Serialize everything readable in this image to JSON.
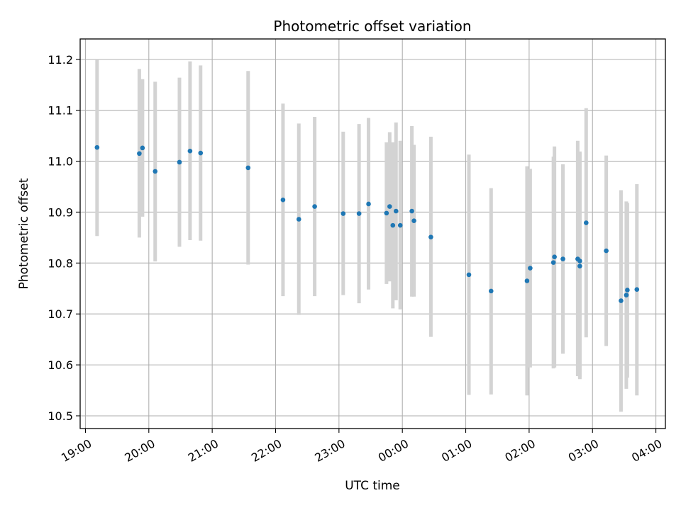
{
  "chart_data": {
    "type": "scatter",
    "title": "Photometric offset variation",
    "xlabel": "UTC time",
    "ylabel": "Photometric offset",
    "x_tick_labels": [
      "19:00",
      "20:00",
      "21:00",
      "22:00",
      "23:00",
      "00:00",
      "01:00",
      "02:00",
      "03:00",
      "04:00"
    ],
    "x_tick_hours": [
      19,
      20,
      21,
      22,
      23,
      24,
      25,
      26,
      27,
      28
    ],
    "y_ticks": [
      10.5,
      10.6,
      10.7,
      10.8,
      10.9,
      11.0,
      11.1,
      11.2
    ],
    "y_tick_labels": [
      "10.5",
      "10.6",
      "10.7",
      "10.8",
      "10.9",
      "11.0",
      "11.1",
      "11.2"
    ],
    "xlim": [
      "18:55",
      "04:09"
    ],
    "ylim": [
      10.475,
      11.24
    ],
    "grid": true,
    "colors": {
      "point": "#1f77b4",
      "errorbar": "#d3d3d3",
      "grid": "#b0b0b0"
    },
    "points": [
      {
        "t": "19:11",
        "y": 11.027,
        "lo": 10.853,
        "hi": 11.201
      },
      {
        "t": "19:51",
        "y": 11.015,
        "lo": 10.85,
        "hi": 11.181
      },
      {
        "t": "19:54",
        "y": 11.026,
        "lo": 10.891,
        "hi": 11.161
      },
      {
        "t": "20:06",
        "y": 10.98,
        "lo": 10.803,
        "hi": 11.156
      },
      {
        "t": "20:29",
        "y": 10.998,
        "lo": 10.832,
        "hi": 11.164
      },
      {
        "t": "20:39",
        "y": 11.02,
        "lo": 10.845,
        "hi": 11.196
      },
      {
        "t": "20:49",
        "y": 11.016,
        "lo": 10.844,
        "hi": 11.188
      },
      {
        "t": "21:34",
        "y": 10.987,
        "lo": 10.797,
        "hi": 11.177
      },
      {
        "t": "22:07",
        "y": 10.924,
        "lo": 10.735,
        "hi": 11.113
      },
      {
        "t": "22:22",
        "y": 10.886,
        "lo": 10.698,
        "hi": 11.074
      },
      {
        "t": "22:37",
        "y": 10.911,
        "lo": 10.735,
        "hi": 11.087
      },
      {
        "t": "23:04",
        "y": 10.897,
        "lo": 10.737,
        "hi": 11.058
      },
      {
        "t": "23:19",
        "y": 10.897,
        "lo": 10.721,
        "hi": 11.073
      },
      {
        "t": "23:28",
        "y": 10.916,
        "lo": 10.748,
        "hi": 11.085
      },
      {
        "t": "23:45",
        "y": 10.898,
        "lo": 10.759,
        "hi": 11.037
      },
      {
        "t": "23:48",
        "y": 10.911,
        "lo": 10.764,
        "hi": 11.057
      },
      {
        "t": "23:51",
        "y": 10.874,
        "lo": 10.711,
        "hi": 11.037
      },
      {
        "t": "23:54",
        "y": 10.902,
        "lo": 10.727,
        "hi": 11.076
      },
      {
        "t": "23:58",
        "y": 10.874,
        "lo": 10.709,
        "hi": 11.04
      },
      {
        "t": "00:09",
        "y": 10.902,
        "lo": 10.734,
        "hi": 11.069
      },
      {
        "t": "00:11",
        "y": 10.883,
        "lo": 10.734,
        "hi": 11.032
      },
      {
        "t": "00:27",
        "y": 10.851,
        "lo": 10.655,
        "hi": 11.048
      },
      {
        "t": "01:03",
        "y": 10.777,
        "lo": 10.541,
        "hi": 11.013
      },
      {
        "t": "01:24",
        "y": 10.745,
        "lo": 10.542,
        "hi": 10.947
      },
      {
        "t": "01:58",
        "y": 10.765,
        "lo": 10.54,
        "hi": 10.99
      },
      {
        "t": "02:01",
        "y": 10.79,
        "lo": 10.595,
        "hi": 10.985
      },
      {
        "t": "02:23",
        "y": 10.801,
        "lo": 10.593,
        "hi": 11.009
      },
      {
        "t": "02:24",
        "y": 10.812,
        "lo": 10.595,
        "hi": 11.029
      },
      {
        "t": "02:32",
        "y": 10.808,
        "lo": 10.622,
        "hi": 10.994
      },
      {
        "t": "02:46",
        "y": 10.808,
        "lo": 10.578,
        "hi": 11.04
      },
      {
        "t": "02:48",
        "y": 10.804,
        "lo": 10.575,
        "hi": 11.019
      },
      {
        "t": "02:48",
        "y": 10.794,
        "lo": 10.572,
        "hi": 11.017
      },
      {
        "t": "02:54",
        "y": 10.879,
        "lo": 10.654,
        "hi": 11.104
      },
      {
        "t": "03:13",
        "y": 10.824,
        "lo": 10.637,
        "hi": 11.011
      },
      {
        "t": "03:27",
        "y": 10.726,
        "lo": 10.508,
        "hi": 10.943
      },
      {
        "t": "03:32",
        "y": 10.737,
        "lo": 10.553,
        "hi": 10.921
      },
      {
        "t": "03:33",
        "y": 10.747,
        "lo": 10.575,
        "hi": 10.918
      },
      {
        "t": "03:42",
        "y": 10.748,
        "lo": 10.54,
        "hi": 10.955
      }
    ]
  }
}
